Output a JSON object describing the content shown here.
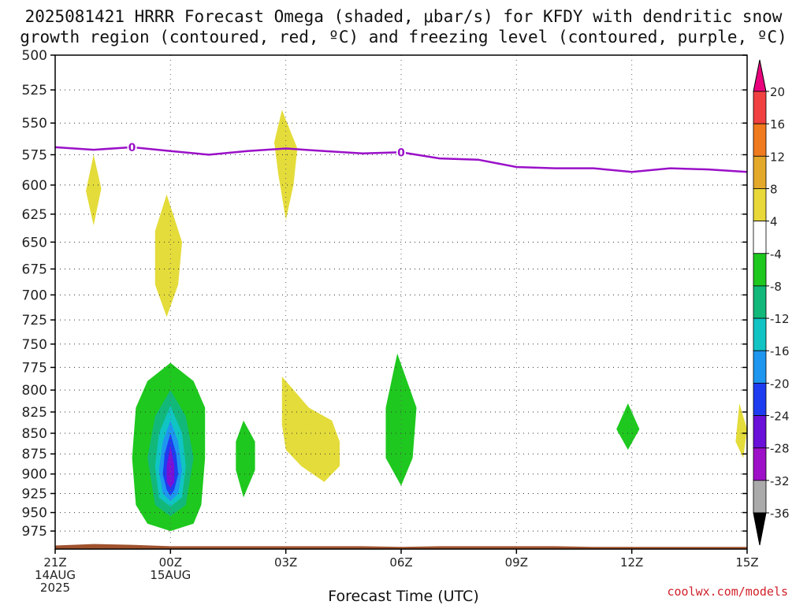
{
  "title_line1": "2025081421 HRRR Forecast Omega (shaded, μbar/s) for KFDY with dendritic snow",
  "title_line2": "growth region (contoured, red, ºC) and freezing level (contoured, purple, ºC)",
  "watermark": "coolwx.com/models",
  "chart_data": {
    "type": "heatmap",
    "xlabel": "Forecast Time (UTC)",
    "ylabel": "",
    "ylim": [
      500,
      1000
    ],
    "y_scale": "log-pressure",
    "y_ticks": [
      500,
      525,
      550,
      575,
      600,
      625,
      650,
      675,
      700,
      725,
      750,
      775,
      800,
      825,
      850,
      875,
      900,
      925,
      950,
      975
    ],
    "xlim": [
      0,
      18
    ],
    "x_ticks": [
      {
        "h": 0,
        "lines": [
          "21Z",
          "14AUG",
          "2025"
        ]
      },
      {
        "h": 3,
        "lines": [
          "00Z",
          "15AUG"
        ]
      },
      {
        "h": 6,
        "lines": [
          "03Z"
        ]
      },
      {
        "h": 9,
        "lines": [
          "06Z"
        ]
      },
      {
        "h": 12,
        "lines": [
          "09Z"
        ]
      },
      {
        "h": 15,
        "lines": [
          "12Z"
        ]
      },
      {
        "h": 18,
        "lines": [
          "15Z"
        ]
      }
    ],
    "grid": true,
    "colorbar": {
      "labels": [
        "20",
        "16",
        "12",
        "8",
        "4",
        "-4",
        "-8",
        "-12",
        "-16",
        "-20",
        "-24",
        "-28",
        "-32",
        "-36"
      ],
      "colors": [
        "#e8007c",
        "#f04040",
        "#f07a1e",
        "#e4a82a",
        "#e8d83a",
        "#ffffff",
        "#1ec81e",
        "#12b87a",
        "#10c4c4",
        "#1e96f0",
        "#1e3cf0",
        "#6a10d8",
        "#9e10c8",
        "#aaaaaa",
        "#000000"
      ]
    },
    "omega_regions": [
      {
        "color": "#e4dc3a",
        "points": [
          [
            1.0,
            575
          ],
          [
            1.2,
            603
          ],
          [
            1.0,
            635
          ],
          [
            0.8,
            605
          ]
        ]
      },
      {
        "color": "#e4dc3a",
        "points": [
          [
            2.9,
            608
          ],
          [
            3.3,
            650
          ],
          [
            3.2,
            690
          ],
          [
            2.9,
            722
          ],
          [
            2.6,
            690
          ],
          [
            2.6,
            640
          ]
        ]
      },
      {
        "color": "#e4dc3a",
        "points": [
          [
            5.9,
            540
          ],
          [
            6.3,
            570
          ],
          [
            6.2,
            600
          ],
          [
            6.0,
            630
          ],
          [
            5.8,
            590
          ],
          [
            5.7,
            565
          ]
        ]
      },
      {
        "color": "#e4dc3a",
        "points": [
          [
            5.9,
            785
          ],
          [
            6.6,
            820
          ],
          [
            7.2,
            835
          ],
          [
            7.4,
            860
          ],
          [
            7.4,
            890
          ],
          [
            7.0,
            910
          ],
          [
            6.4,
            890
          ],
          [
            6.0,
            870
          ],
          [
            5.9,
            840
          ]
        ]
      },
      {
        "color": "#e4dc3a",
        "points": [
          [
            17.8,
            815
          ],
          [
            18.0,
            845
          ],
          [
            17.9,
            880
          ],
          [
            17.7,
            860
          ]
        ]
      },
      {
        "color": "#1ec81e",
        "points": [
          [
            3.0,
            770
          ],
          [
            3.6,
            790
          ],
          [
            3.9,
            820
          ],
          [
            3.9,
            880
          ],
          [
            3.8,
            940
          ],
          [
            3.6,
            965
          ],
          [
            3.0,
            975
          ],
          [
            2.4,
            965
          ],
          [
            2.1,
            940
          ],
          [
            2.0,
            880
          ],
          [
            2.1,
            820
          ],
          [
            2.4,
            790
          ]
        ]
      },
      {
        "color": "#1ec81e",
        "points": [
          [
            4.9,
            835
          ],
          [
            5.2,
            860
          ],
          [
            5.2,
            895
          ],
          [
            4.9,
            930
          ],
          [
            4.7,
            895
          ],
          [
            4.7,
            860
          ]
        ]
      },
      {
        "color": "#1ec81e",
        "points": [
          [
            8.9,
            760
          ],
          [
            9.4,
            820
          ],
          [
            9.3,
            880
          ],
          [
            9.0,
            915
          ],
          [
            8.6,
            880
          ],
          [
            8.6,
            820
          ]
        ]
      },
      {
        "color": "#1ec81e",
        "points": [
          [
            14.9,
            815
          ],
          [
            15.2,
            845
          ],
          [
            14.9,
            870
          ],
          [
            14.6,
            845
          ]
        ]
      },
      {
        "color": "#12b87a",
        "points": [
          [
            3.0,
            800
          ],
          [
            3.4,
            830
          ],
          [
            3.6,
            880
          ],
          [
            3.4,
            940
          ],
          [
            3.0,
            955
          ],
          [
            2.6,
            940
          ],
          [
            2.4,
            880
          ],
          [
            2.6,
            830
          ]
        ]
      },
      {
        "color": "#10c4c4",
        "points": [
          [
            3.0,
            818
          ],
          [
            3.3,
            850
          ],
          [
            3.4,
            890
          ],
          [
            3.3,
            930
          ],
          [
            3.0,
            942
          ],
          [
            2.7,
            930
          ],
          [
            2.6,
            890
          ],
          [
            2.7,
            850
          ]
        ]
      },
      {
        "color": "#1e96f0",
        "points": [
          [
            3.0,
            835
          ],
          [
            3.2,
            860
          ],
          [
            3.3,
            895
          ],
          [
            3.2,
            925
          ],
          [
            3.0,
            935
          ],
          [
            2.8,
            925
          ],
          [
            2.7,
            895
          ],
          [
            2.8,
            860
          ]
        ]
      },
      {
        "color": "#1e3cf0",
        "points": [
          [
            3.0,
            850
          ],
          [
            3.15,
            875
          ],
          [
            3.2,
            900
          ],
          [
            3.1,
            920
          ],
          [
            3.0,
            928
          ],
          [
            2.9,
            920
          ],
          [
            2.8,
            900
          ],
          [
            2.85,
            875
          ]
        ]
      },
      {
        "color": "#7a10d8",
        "points": [
          [
            3.0,
            865
          ],
          [
            3.1,
            890
          ],
          [
            3.1,
            910
          ],
          [
            3.0,
            918
          ],
          [
            2.9,
            910
          ],
          [
            2.9,
            890
          ]
        ]
      }
    ],
    "freezing_level": {
      "label": "0",
      "label_positions": [
        2.0,
        9.0
      ],
      "points": [
        [
          0,
          569
        ],
        [
          1,
          571
        ],
        [
          2,
          569
        ],
        [
          3,
          572
        ],
        [
          4,
          575
        ],
        [
          5,
          572
        ],
        [
          6,
          570
        ],
        [
          7,
          572
        ],
        [
          8,
          574
        ],
        [
          9,
          573
        ],
        [
          10,
          578
        ],
        [
          11,
          579
        ],
        [
          12,
          585
        ],
        [
          13,
          586
        ],
        [
          14,
          586
        ],
        [
          15,
          589
        ],
        [
          16,
          586
        ],
        [
          17,
          587
        ],
        [
          18,
          589
        ]
      ]
    },
    "terrain": [
      [
        0,
        995
      ],
      [
        1,
        993
      ],
      [
        2,
        994
      ],
      [
        3,
        996
      ],
      [
        4,
        996
      ],
      [
        5,
        996
      ],
      [
        6,
        996
      ],
      [
        7,
        996
      ],
      [
        8,
        996
      ],
      [
        9,
        997
      ],
      [
        10,
        996
      ],
      [
        11,
        996
      ],
      [
        12,
        996
      ],
      [
        13,
        996
      ],
      [
        14,
        997
      ],
      [
        15,
        997
      ],
      [
        16,
        997
      ],
      [
        17,
        997
      ],
      [
        18,
        997
      ]
    ]
  }
}
